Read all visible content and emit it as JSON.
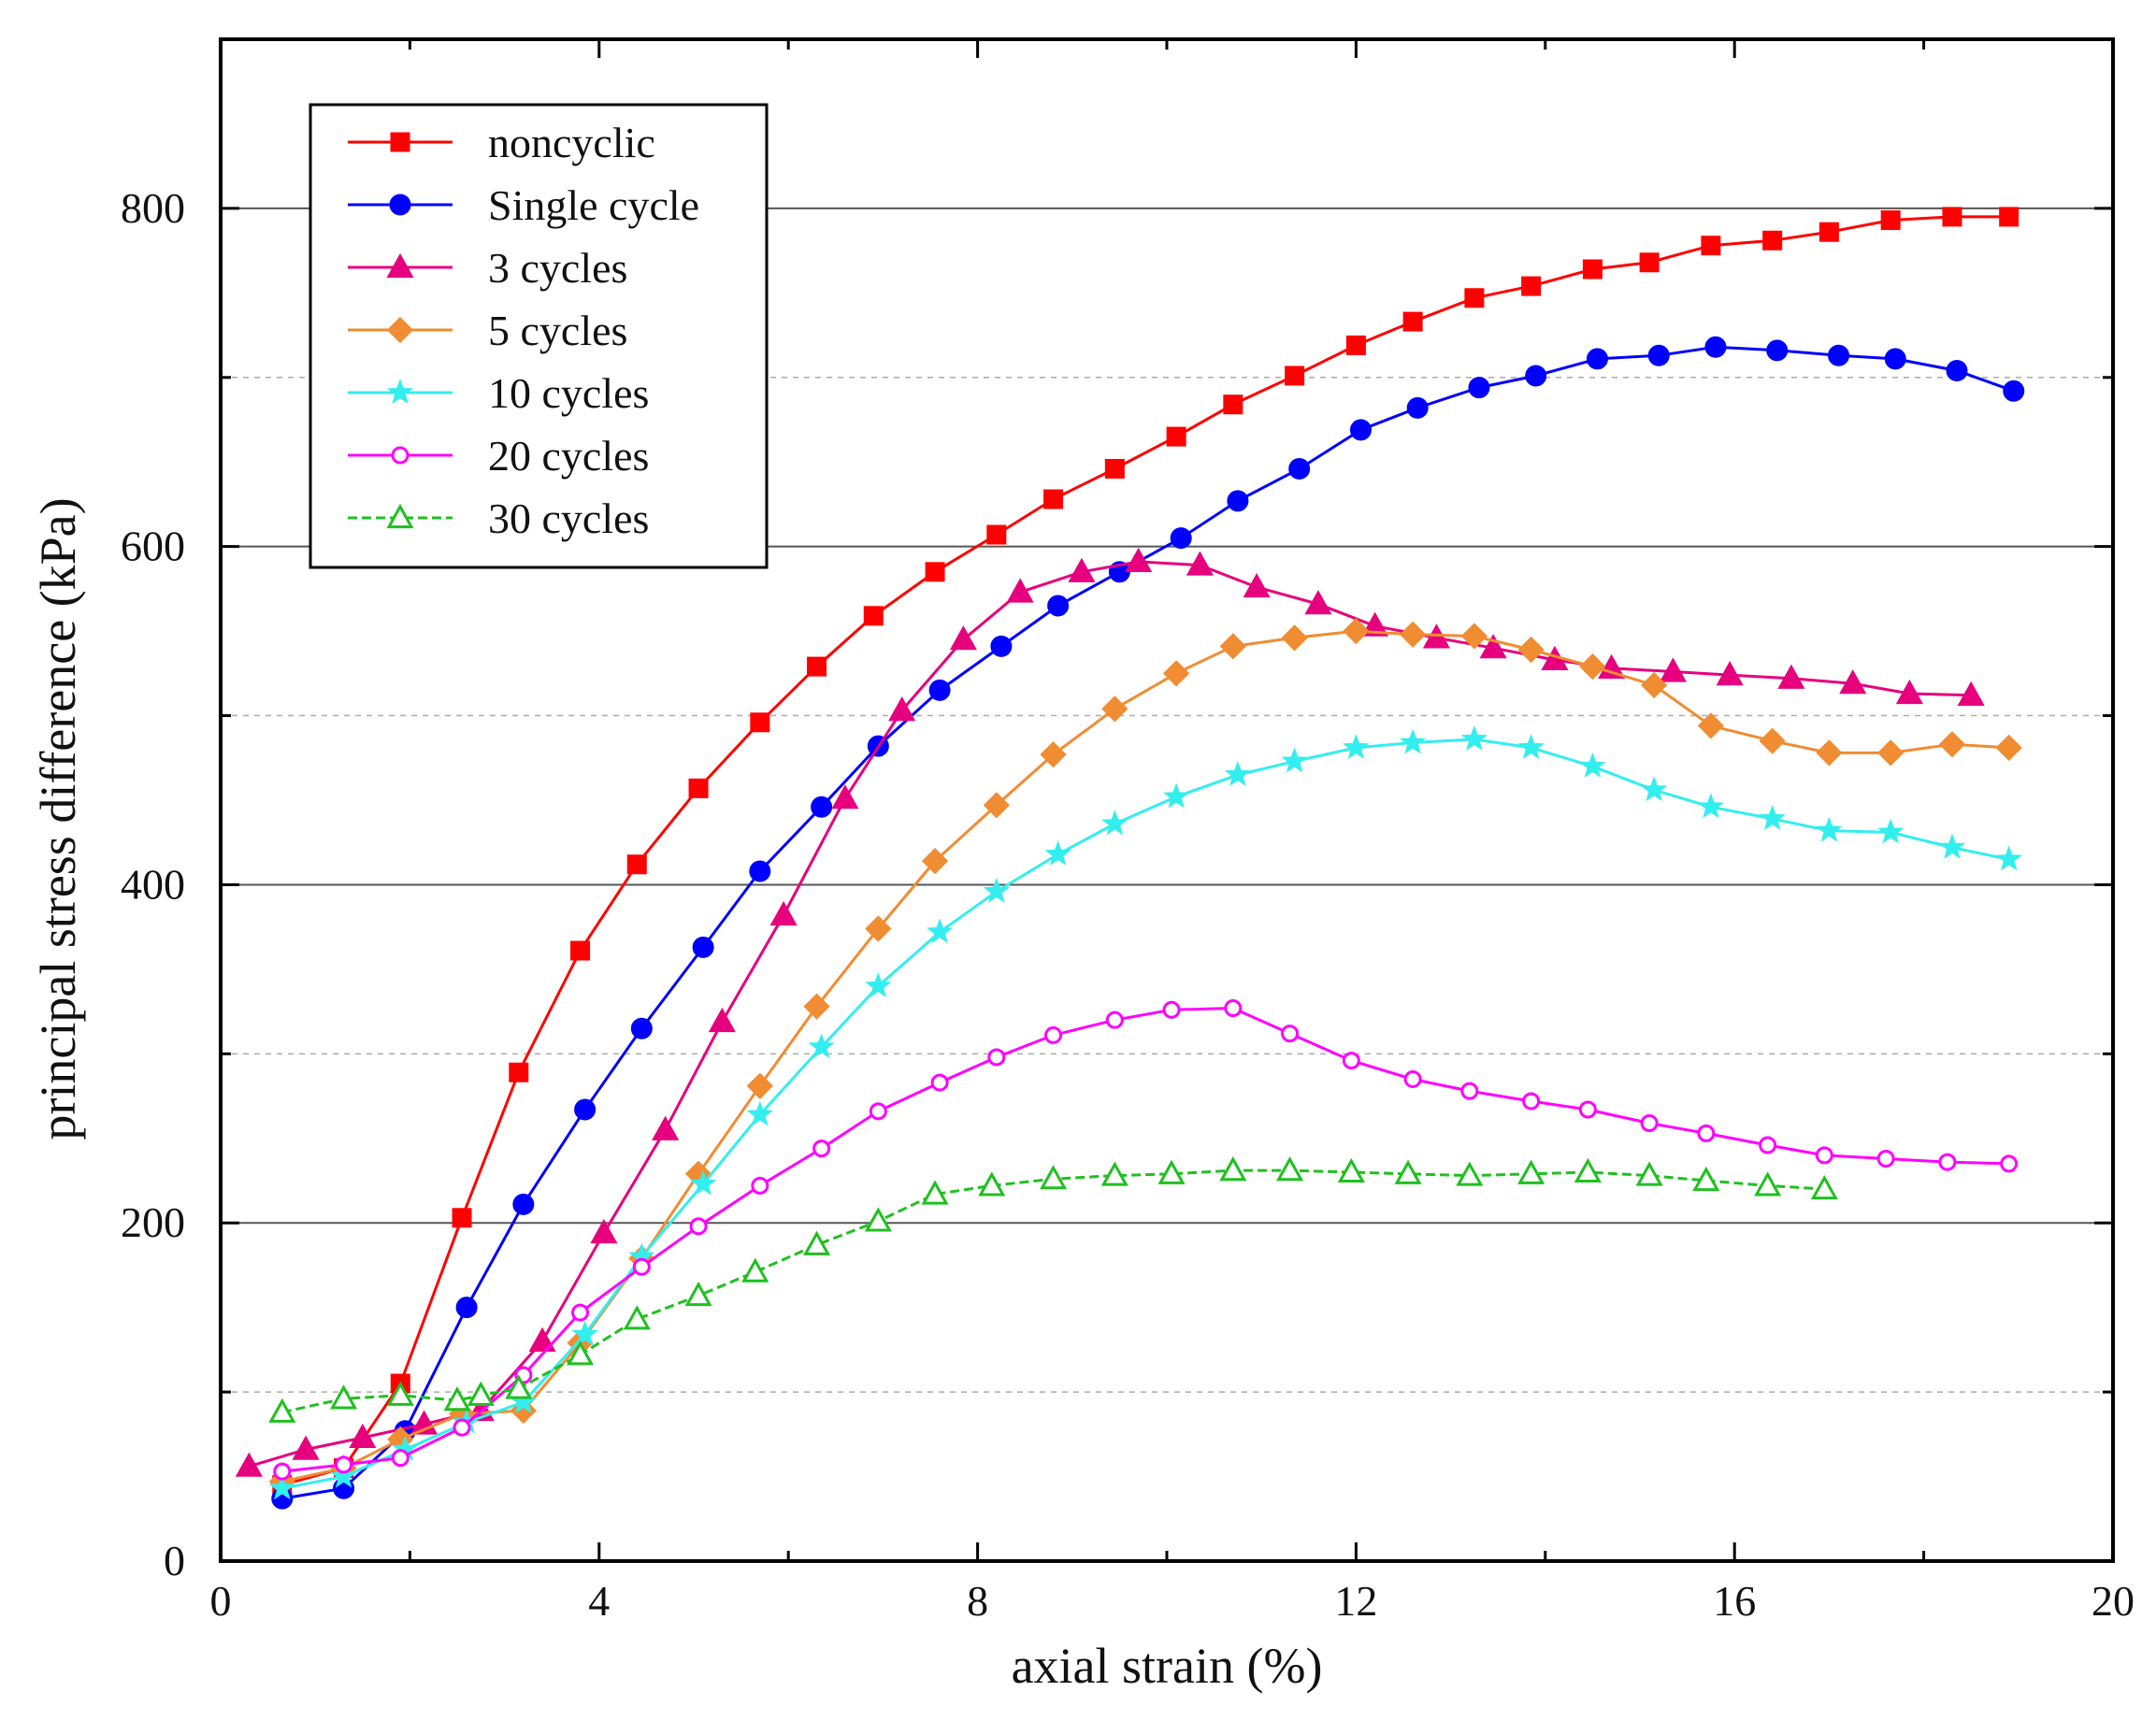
{
  "chart_data": {
    "type": "line",
    "title": "",
    "xlabel": "axial strain (%)",
    "ylabel": "principal stress difference (kPa)",
    "xlim": [
      0,
      20
    ],
    "ylim": [
      0,
      900
    ],
    "xticks": [
      0,
      4,
      8,
      12,
      16,
      20
    ],
    "yticks": [
      0,
      200,
      400,
      600,
      800
    ],
    "grid": "horizontal; solid at 200, 400, 600, 800; dashed at 100, 300, 500, 700",
    "legend_position": "top-left",
    "series": [
      {
        "name": "noncyclic",
        "color": "#ff0000",
        "marker": "square",
        "filled": true,
        "line_style": "solid",
        "points": [
          [
            0.65,
            45
          ],
          [
            1.3,
            55
          ],
          [
            1.9,
            105
          ],
          [
            2.55,
            203
          ],
          [
            3.15,
            289
          ],
          [
            3.8,
            361
          ],
          [
            4.4,
            412
          ],
          [
            5.05,
            457
          ],
          [
            5.7,
            496
          ],
          [
            6.3,
            529
          ],
          [
            6.9,
            559
          ],
          [
            7.55,
            585
          ],
          [
            8.2,
            607
          ],
          [
            8.8,
            628
          ],
          [
            9.45,
            646
          ],
          [
            10.1,
            665
          ],
          [
            10.7,
            684
          ],
          [
            11.35,
            701
          ],
          [
            12.0,
            719
          ],
          [
            12.6,
            733
          ],
          [
            13.25,
            747
          ],
          [
            13.85,
            754
          ],
          [
            14.5,
            764
          ],
          [
            15.1,
            768
          ],
          [
            15.75,
            778
          ],
          [
            16.4,
            781
          ],
          [
            17.0,
            786
          ],
          [
            17.65,
            793
          ],
          [
            18.3,
            795
          ],
          [
            18.9,
            795
          ]
        ]
      },
      {
        "name": "Single cycle",
        "color": "#0000ff",
        "marker": "circle",
        "filled": true,
        "line_style": "solid",
        "points": [
          [
            0.65,
            37
          ],
          [
            1.3,
            43
          ],
          [
            1.95,
            77
          ],
          [
            2.6,
            150
          ],
          [
            3.2,
            211
          ],
          [
            3.85,
            267
          ],
          [
            4.45,
            315
          ],
          [
            5.1,
            363
          ],
          [
            5.7,
            408
          ],
          [
            6.35,
            446
          ],
          [
            6.95,
            482
          ],
          [
            7.6,
            515
          ],
          [
            8.25,
            541
          ],
          [
            8.85,
            565
          ],
          [
            9.5,
            585
          ],
          [
            10.15,
            605
          ],
          [
            10.75,
            627
          ],
          [
            11.4,
            646
          ],
          [
            12.05,
            669
          ],
          [
            12.65,
            682
          ],
          [
            13.3,
            694
          ],
          [
            13.9,
            701
          ],
          [
            14.55,
            711
          ],
          [
            15.2,
            713
          ],
          [
            15.8,
            718
          ],
          [
            16.45,
            716
          ],
          [
            17.1,
            713
          ],
          [
            17.7,
            711
          ],
          [
            18.35,
            704
          ],
          [
            18.95,
            692
          ]
        ]
      },
      {
        "name": "3 cycles",
        "color": "#e6007e",
        "marker": "triangle",
        "filled": true,
        "line_style": "solid",
        "points": [
          [
            0.3,
            56
          ],
          [
            0.9,
            66
          ],
          [
            1.5,
            73
          ],
          [
            2.15,
            81
          ],
          [
            2.75,
            89
          ],
          [
            3.4,
            130
          ],
          [
            4.05,
            194
          ],
          [
            4.7,
            255
          ],
          [
            5.3,
            319
          ],
          [
            5.95,
            382
          ],
          [
            6.6,
            451
          ],
          [
            7.2,
            503
          ],
          [
            7.85,
            545
          ],
          [
            8.45,
            573
          ],
          [
            9.1,
            585
          ],
          [
            9.7,
            591
          ],
          [
            10.35,
            589
          ],
          [
            10.95,
            576
          ],
          [
            11.6,
            566
          ],
          [
            12.2,
            553
          ],
          [
            12.85,
            546
          ],
          [
            13.45,
            540
          ],
          [
            14.1,
            533
          ],
          [
            14.7,
            528
          ],
          [
            15.35,
            526
          ],
          [
            15.95,
            524
          ],
          [
            16.6,
            522
          ],
          [
            17.25,
            519
          ],
          [
            17.85,
            513
          ],
          [
            18.5,
            512
          ]
        ]
      },
      {
        "name": "5 cycles",
        "color": "#f08c32",
        "marker": "diamond",
        "filled": true,
        "line_style": "solid",
        "points": [
          [
            0.65,
            47
          ],
          [
            1.3,
            55
          ],
          [
            1.9,
            72
          ],
          [
            2.55,
            87
          ],
          [
            3.2,
            89
          ],
          [
            3.8,
            129
          ],
          [
            4.45,
            179
          ],
          [
            5.05,
            229
          ],
          [
            5.7,
            281
          ],
          [
            6.3,
            328
          ],
          [
            6.95,
            374
          ],
          [
            7.55,
            414
          ],
          [
            8.2,
            447
          ],
          [
            8.8,
            477
          ],
          [
            9.45,
            504
          ],
          [
            10.1,
            525
          ],
          [
            10.7,
            541
          ],
          [
            11.35,
            546
          ],
          [
            12.0,
            550
          ],
          [
            12.6,
            548
          ],
          [
            13.25,
            547
          ],
          [
            13.85,
            539
          ],
          [
            14.5,
            529
          ],
          [
            15.15,
            518
          ],
          [
            15.75,
            494
          ],
          [
            16.4,
            485
          ],
          [
            17.0,
            478
          ],
          [
            17.65,
            478
          ],
          [
            18.3,
            483
          ],
          [
            18.9,
            481
          ]
        ]
      },
      {
        "name": "10 cycles",
        "color": "#33eeee",
        "marker": "star",
        "filled": true,
        "line_style": "solid",
        "points": [
          [
            0.65,
            43
          ],
          [
            1.3,
            50
          ],
          [
            1.95,
            66
          ],
          [
            2.6,
            82
          ],
          [
            3.2,
            94
          ],
          [
            3.85,
            134
          ],
          [
            4.45,
            180
          ],
          [
            5.1,
            223
          ],
          [
            5.7,
            264
          ],
          [
            6.35,
            304
          ],
          [
            6.95,
            340
          ],
          [
            7.6,
            372
          ],
          [
            8.2,
            396
          ],
          [
            8.85,
            418
          ],
          [
            9.45,
            436
          ],
          [
            10.1,
            452
          ],
          [
            10.75,
            465
          ],
          [
            11.35,
            473
          ],
          [
            12.0,
            481
          ],
          [
            12.6,
            484
          ],
          [
            13.25,
            486
          ],
          [
            13.85,
            481
          ],
          [
            14.5,
            470
          ],
          [
            15.15,
            456
          ],
          [
            15.75,
            446
          ],
          [
            16.4,
            439
          ],
          [
            17.0,
            432
          ],
          [
            17.65,
            431
          ],
          [
            18.3,
            422
          ],
          [
            18.9,
            415
          ]
        ]
      },
      {
        "name": "20 cycles",
        "color": "#ff00ff",
        "marker": "circle",
        "filled": false,
        "line_style": "solid",
        "points": [
          [
            0.65,
            53
          ],
          [
            1.3,
            57
          ],
          [
            1.9,
            61
          ],
          [
            2.55,
            79
          ],
          [
            3.2,
            110
          ],
          [
            3.8,
            147
          ],
          [
            4.45,
            174
          ],
          [
            5.05,
            198
          ],
          [
            5.7,
            222
          ],
          [
            6.35,
            244
          ],
          [
            6.95,
            266
          ],
          [
            7.6,
            283
          ],
          [
            8.2,
            298
          ],
          [
            8.8,
            311
          ],
          [
            9.45,
            320
          ],
          [
            10.05,
            326
          ],
          [
            10.7,
            327
          ],
          [
            11.3,
            312
          ],
          [
            11.95,
            296
          ],
          [
            12.6,
            285
          ],
          [
            13.2,
            278
          ],
          [
            13.85,
            272
          ],
          [
            14.45,
            267
          ],
          [
            15.1,
            259
          ],
          [
            15.7,
            253
          ],
          [
            16.35,
            246
          ],
          [
            16.95,
            240
          ],
          [
            17.6,
            238
          ],
          [
            18.25,
            236
          ],
          [
            18.9,
            235
          ]
        ]
      },
      {
        "name": "30 cycles",
        "color": "#1fc01f",
        "marker": "triangle",
        "filled": false,
        "line_style": "dashed",
        "points": [
          [
            0.65,
            88
          ],
          [
            1.3,
            96
          ],
          [
            1.9,
            98
          ],
          [
            2.5,
            95
          ],
          [
            2.75,
            98
          ],
          [
            3.15,
            102
          ],
          [
            3.8,
            122
          ],
          [
            4.4,
            143
          ],
          [
            5.05,
            157
          ],
          [
            5.65,
            171
          ],
          [
            6.3,
            187
          ],
          [
            6.95,
            201
          ],
          [
            7.55,
            217
          ],
          [
            8.15,
            222
          ],
          [
            8.8,
            226
          ],
          [
            9.45,
            228
          ],
          [
            10.05,
            229
          ],
          [
            10.7,
            231
          ],
          [
            11.3,
            231
          ],
          [
            11.95,
            230
          ],
          [
            12.55,
            229
          ],
          [
            13.2,
            228
          ],
          [
            13.85,
            229
          ],
          [
            14.45,
            230
          ],
          [
            15.1,
            228
          ],
          [
            15.7,
            225
          ],
          [
            16.35,
            222
          ],
          [
            16.95,
            220
          ]
        ]
      }
    ]
  }
}
